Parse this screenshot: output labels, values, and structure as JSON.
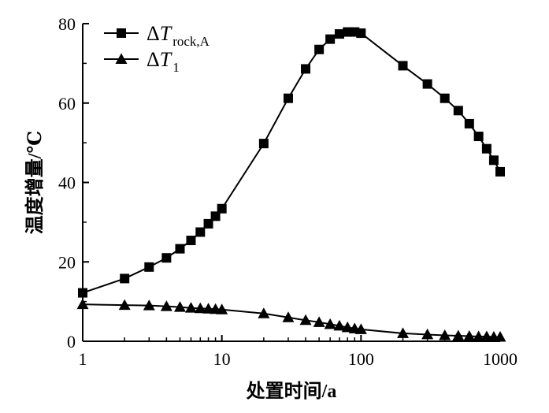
{
  "chart_data": {
    "type": "line",
    "xlabel": "处置时间/a",
    "ylabel": "温度增量/℃",
    "xscale": "log",
    "xlim": [
      1,
      1000
    ],
    "ylim": [
      0,
      80
    ],
    "xticks": [
      1,
      10,
      100,
      1000
    ],
    "xtick_labels": [
      "1",
      "10",
      "100",
      "1000"
    ],
    "yticks": [
      0,
      20,
      40,
      60,
      80
    ],
    "ytick_labels": [
      "0",
      "20",
      "40",
      "60",
      "80"
    ],
    "grid": false,
    "legend": "top-left",
    "series": [
      {
        "name": "ΔT",
        "name_delta": "Δ",
        "name_var": "T",
        "name_sub": "rock,A",
        "marker": "square",
        "color": "#000000",
        "points": [
          [
            1,
            12.2
          ],
          [
            2,
            15.8
          ],
          [
            3,
            18.7
          ],
          [
            4,
            21
          ],
          [
            5,
            23.3
          ],
          [
            6,
            25.4
          ],
          [
            7,
            27.5
          ],
          [
            8,
            29.6
          ],
          [
            9,
            31.5
          ],
          [
            10,
            33.4
          ],
          [
            20,
            49.8
          ],
          [
            30,
            61.2
          ],
          [
            40,
            68.6
          ],
          [
            50,
            73.5
          ],
          [
            60,
            76.1
          ],
          [
            70,
            77.4
          ],
          [
            80,
            77.9
          ],
          [
            90,
            77.9
          ],
          [
            100,
            77.6
          ],
          [
            200,
            69.4
          ],
          [
            300,
            64.8
          ],
          [
            400,
            61.2
          ],
          [
            500,
            58.1
          ],
          [
            600,
            54.8
          ],
          [
            700,
            51.6
          ],
          [
            800,
            48.5
          ],
          [
            900,
            45.6
          ],
          [
            1000,
            42.7
          ]
        ]
      },
      {
        "name": "ΔT",
        "name_delta": "Δ",
        "name_var": "T",
        "name_sub": "1",
        "marker": "triangle",
        "color": "#000000",
        "points": [
          [
            1,
            9.3
          ],
          [
            2,
            9.1
          ],
          [
            3,
            9.0
          ],
          [
            4,
            8.8
          ],
          [
            5,
            8.6
          ],
          [
            6,
            8.4
          ],
          [
            7,
            8.3
          ],
          [
            8,
            8.2
          ],
          [
            9,
            8.1
          ],
          [
            10,
            8.0
          ],
          [
            20,
            7.0
          ],
          [
            30,
            6.0
          ],
          [
            40,
            5.3
          ],
          [
            50,
            4.8
          ],
          [
            60,
            4.3
          ],
          [
            70,
            3.9
          ],
          [
            80,
            3.5
          ],
          [
            90,
            3.2
          ],
          [
            100,
            3.0
          ],
          [
            200,
            2.0
          ],
          [
            300,
            1.7
          ],
          [
            400,
            1.5
          ],
          [
            500,
            1.4
          ],
          [
            600,
            1.3
          ],
          [
            700,
            1.2
          ],
          [
            800,
            1.2
          ],
          [
            900,
            1.1
          ],
          [
            1000,
            1.1
          ]
        ]
      }
    ]
  }
}
